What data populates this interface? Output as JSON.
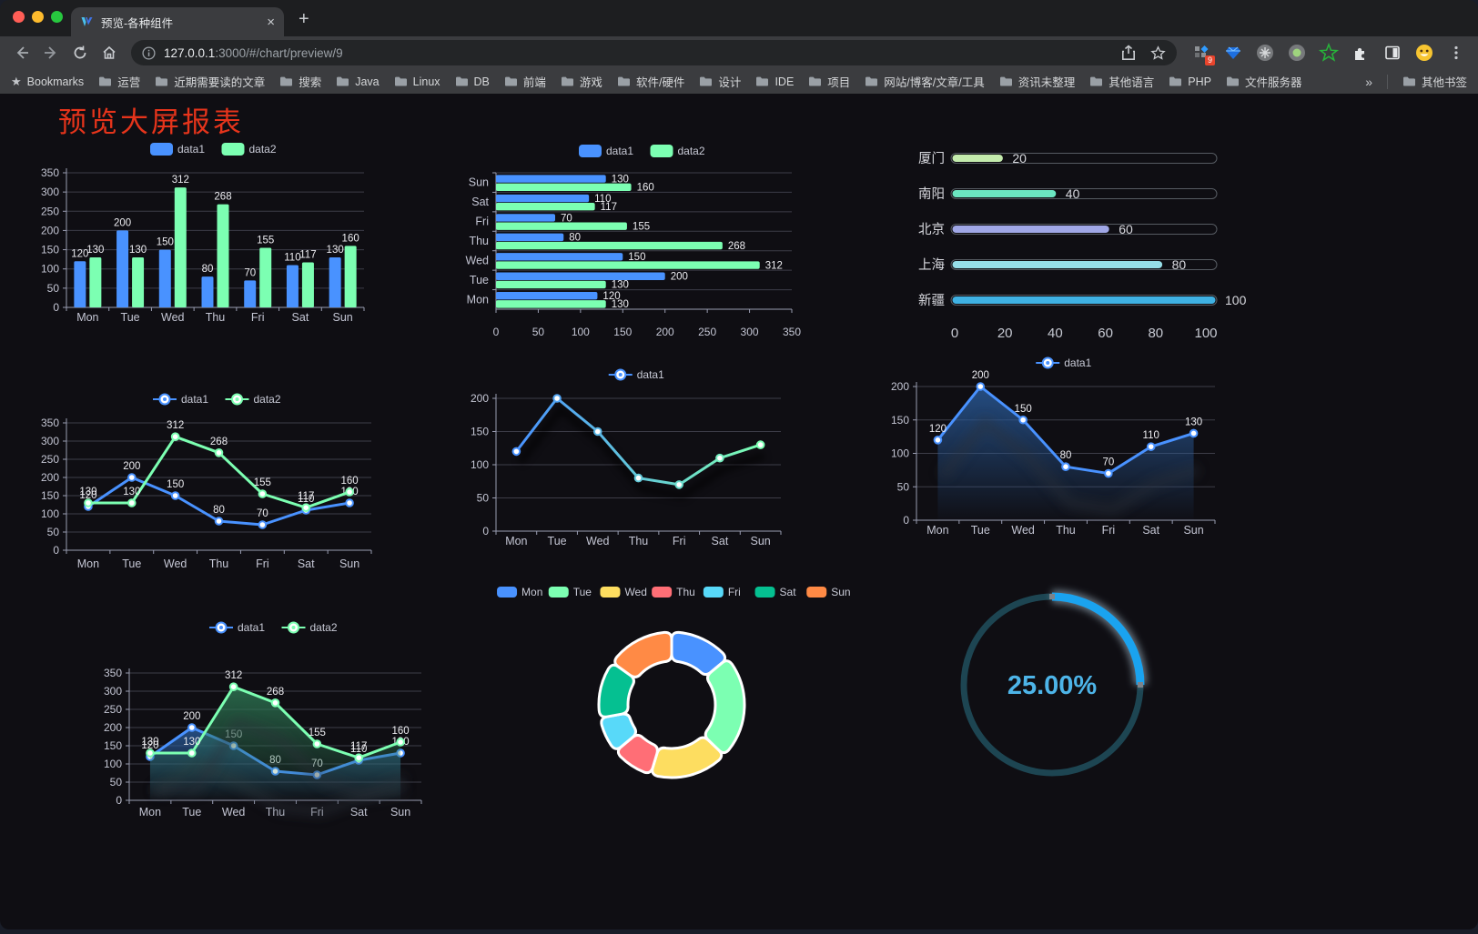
{
  "browser": {
    "tab": {
      "title": "预览-各种组件"
    },
    "new_tab_label": "+",
    "tab_close_label": "×",
    "url": {
      "host": "127.0.0.1",
      "rest": ":3000/#/chart/preview/9"
    },
    "extensions_badge": "9",
    "bookmarks": {
      "lead": "Bookmarks",
      "items": [
        "运营",
        "近期需要读的文章",
        "搜索",
        "Java",
        "Linux",
        "DB",
        "前端",
        "游戏",
        "软件/硬件",
        "设计",
        "IDE",
        "项目",
        "网站/博客/文章/工具",
        "资讯未整理",
        "其他语言",
        "PHP",
        "文件服务器"
      ],
      "overflow": "»",
      "other": "其他书签"
    }
  },
  "page": {
    "title": "预览大屏报表",
    "title_color": "#e5341b",
    "background": "#0f0e13"
  },
  "chart_data": [
    {
      "id": "grouped-bar",
      "type": "bar",
      "categories": [
        "Mon",
        "Tue",
        "Wed",
        "Thu",
        "Fri",
        "Sat",
        "Sun"
      ],
      "series": [
        {
          "name": "data1",
          "color": "#4992ff",
          "values": [
            120,
            200,
            150,
            80,
            70,
            110,
            130
          ]
        },
        {
          "name": "data2",
          "color": "#7cffb2",
          "values": [
            130,
            130,
            312,
            268,
            155,
            117,
            160
          ]
        }
      ],
      "ylim": [
        0,
        350
      ],
      "ytick_step": 50,
      "show_labels": true,
      "legend_position": "top",
      "grid": true
    },
    {
      "id": "horizontal-bar",
      "type": "bar",
      "orientation": "horizontal",
      "category_axis_order": "Sun-at-top",
      "categories": [
        "Mon",
        "Tue",
        "Wed",
        "Thu",
        "Fri",
        "Sat",
        "Sun"
      ],
      "series": [
        {
          "name": "data1",
          "color": "#4992ff",
          "values": [
            120,
            200,
            150,
            80,
            70,
            110,
            130
          ]
        },
        {
          "name": "data2",
          "color": "#7cffb2",
          "values": [
            130,
            130,
            312,
            268,
            155,
            117,
            160
          ]
        }
      ],
      "xlim": [
        0,
        350
      ],
      "xtick_step": 50,
      "show_labels": true,
      "legend_position": "top",
      "grid": true
    },
    {
      "id": "progress-bars",
      "type": "bar",
      "subtype": "horizontal-progress",
      "rows": [
        {
          "label": "厦门",
          "value": 20,
          "color": "#c4ebad"
        },
        {
          "label": "南阳",
          "value": 40,
          "color": "#6be6c1"
        },
        {
          "label": "北京",
          "value": 60,
          "color": "#a0a7e6"
        },
        {
          "label": "上海",
          "value": 80,
          "color": "#96dee8"
        },
        {
          "label": "新疆",
          "value": 100,
          "color": "#3fb1e3"
        }
      ],
      "xlim": [
        0,
        100
      ],
      "xticks": [
        0,
        20,
        40,
        60,
        80,
        100
      ]
    },
    {
      "id": "line-basic",
      "type": "line",
      "categories": [
        "Mon",
        "Tue",
        "Wed",
        "Thu",
        "Fri",
        "Sat",
        "Sun"
      ],
      "series": [
        {
          "name": "data1",
          "color": "#4992ff",
          "values": [
            120,
            200,
            150,
            80,
            70,
            110,
            130
          ]
        },
        {
          "name": "data2",
          "color": "#7cffb2",
          "values": [
            130,
            130,
            312,
            268,
            155,
            117,
            160
          ]
        }
      ],
      "ylim": [
        0,
        350
      ],
      "ytick_step": 50,
      "show_labels": true,
      "markers": true,
      "legend_position": "top"
    },
    {
      "id": "line-gradient",
      "type": "line",
      "categories": [
        "Mon",
        "Tue",
        "Wed",
        "Thu",
        "Fri",
        "Sat",
        "Sun"
      ],
      "series": [
        {
          "name": "data1",
          "gradient": [
            "#4992ff",
            "#7cffb2"
          ],
          "values": [
            120,
            200,
            150,
            80,
            70,
            110,
            130
          ]
        }
      ],
      "ylim": [
        0,
        200
      ],
      "ytick_step": 50,
      "show_labels": false,
      "markers": true,
      "shadow": true,
      "legend_position": "top"
    },
    {
      "id": "area-single",
      "type": "area",
      "categories": [
        "Mon",
        "Tue",
        "Wed",
        "Thu",
        "Fri",
        "Sat",
        "Sun"
      ],
      "series": [
        {
          "name": "data1",
          "color": "#4992ff",
          "area_color": "#2a5d9e",
          "values": [
            120,
            200,
            150,
            80,
            70,
            110,
            130
          ]
        }
      ],
      "ylim": [
        0,
        200
      ],
      "ytick_step": 50,
      "show_labels": true,
      "markers": true,
      "legend_position": "top"
    },
    {
      "id": "area-double",
      "type": "area",
      "categories": [
        "Mon",
        "Tue",
        "Wed",
        "Thu",
        "Fri",
        "Sat",
        "Sun"
      ],
      "series": [
        {
          "name": "data1",
          "color": "#4992ff",
          "area_color": "#2a5d9e",
          "values": [
            120,
            200,
            150,
            80,
            70,
            110,
            130
          ]
        },
        {
          "name": "data2",
          "color": "#7cffb2",
          "area_color": "#2e7a55",
          "values": [
            130,
            130,
            312,
            268,
            155,
            117,
            160
          ]
        }
      ],
      "ylim": [
        0,
        350
      ],
      "ytick_step": 50,
      "show_labels": true,
      "markers": true,
      "legend_position": "top"
    },
    {
      "id": "donut",
      "type": "pie",
      "inner_radius_ratio": 0.6,
      "legend_position": "top",
      "items": [
        {
          "name": "Mon",
          "value": 120,
          "color": "#4992ff"
        },
        {
          "name": "Tue",
          "value": 200,
          "color": "#7cffb2"
        },
        {
          "name": "Wed",
          "value": 150,
          "color": "#fddd60"
        },
        {
          "name": "Thu",
          "value": 80,
          "color": "#ff6e76"
        },
        {
          "name": "Fri",
          "value": 70,
          "color": "#58d9f9"
        },
        {
          "name": "Sat",
          "value": 110,
          "color": "#05c091"
        },
        {
          "name": "Sun",
          "value": 130,
          "color": "#ff8a45"
        }
      ]
    },
    {
      "id": "gauge",
      "type": "gauge",
      "value": 25,
      "max": 100,
      "label": "25.00%",
      "color": "#1aa3ef",
      "track_color": "#1d4552",
      "text_color": "#4db4e8"
    }
  ]
}
